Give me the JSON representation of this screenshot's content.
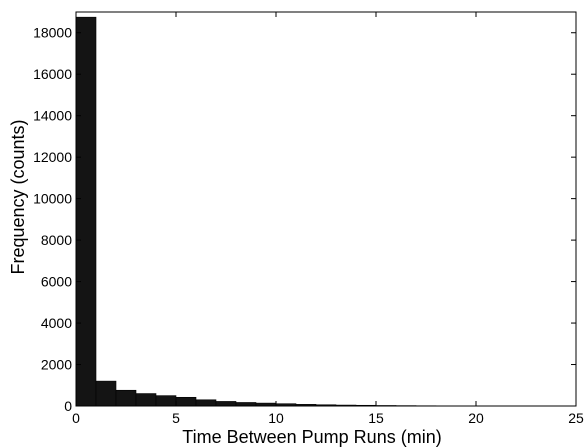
{
  "chart_data": {
    "type": "bar",
    "title": "",
    "xlabel": "Time Between Pump Runs (min)",
    "ylabel": "Frequency (counts)",
    "xlim": [
      0,
      25
    ],
    "ylim": [
      0,
      19000
    ],
    "xticks": [
      0,
      5,
      10,
      15,
      20,
      25
    ],
    "yticks": [
      0,
      2000,
      4000,
      6000,
      8000,
      10000,
      12000,
      14000,
      16000,
      18000
    ],
    "grid": false,
    "bin_width": 1,
    "bin_starts": [
      0,
      1,
      2,
      3,
      4,
      5,
      6,
      7,
      8,
      9,
      10,
      11,
      12,
      13,
      14,
      15,
      16,
      17,
      18,
      19,
      20,
      21,
      22,
      23,
      24
    ],
    "values": [
      18750,
      1200,
      760,
      600,
      500,
      420,
      300,
      220,
      170,
      140,
      110,
      80,
      60,
      45,
      35,
      25,
      18,
      12,
      8,
      6,
      5,
      4,
      3,
      2,
      2
    ],
    "bar_color": "#141414"
  }
}
